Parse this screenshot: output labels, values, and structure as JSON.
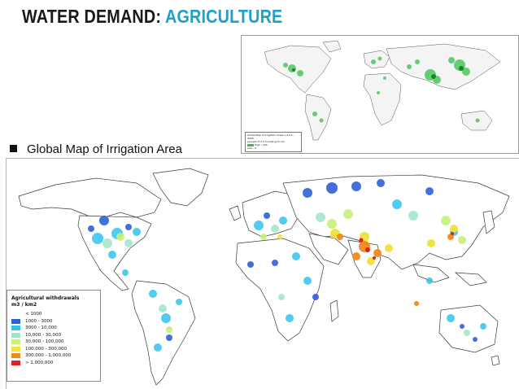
{
  "title": {
    "part1": "WATER DEMAND: ",
    "part2": "AGRICULTURE"
  },
  "bullet": {
    "text": "Global Map of Irrigation Area"
  },
  "inset_legend": {
    "line1": "Global Map of Irrigation Areas v.4.0.1, 2005",
    "line2": "percent of 2.5 minute grid cell",
    "line3": "High : 100",
    "line4": "Low : 0"
  },
  "legend": {
    "title": "Agricultural withdrawals",
    "units": "m3 / km2",
    "items": [
      {
        "label": "< 1000",
        "color": "#ffffff"
      },
      {
        "label": "1000 - 3000",
        "color": "#2f5fd8"
      },
      {
        "label": "3000 - 10,000",
        "color": "#33c2ee"
      },
      {
        "label": "10,000 - 30,000",
        "color": "#9ee6c8"
      },
      {
        "label": "30,000 - 100,000",
        "color": "#c8f07a"
      },
      {
        "label": "100,000 - 300,000",
        "color": "#f2e23a"
      },
      {
        "label": "300,000 - 1,000,000",
        "color": "#f08a1c"
      },
      {
        "label": "> 1,000,000",
        "color": "#e02020"
      }
    ]
  }
}
